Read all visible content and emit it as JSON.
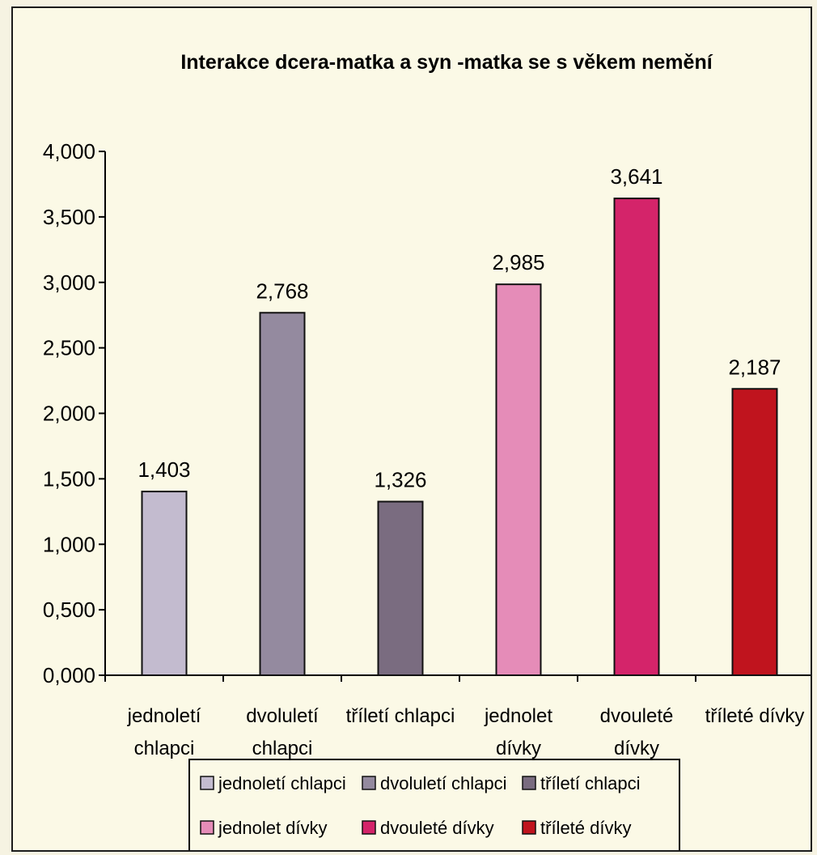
{
  "chart_data": {
    "type": "bar",
    "title": "Interakce dcera-matka a syn -matka se s věkem nemění",
    "xlabel": "",
    "ylabel": "",
    "ylim": [
      0,
      4
    ],
    "ytick_labels": [
      "0,000",
      "0,500",
      "1,000",
      "1,500",
      "2,000",
      "2,500",
      "3,000",
      "3,500",
      "4,000"
    ],
    "categories": [
      [
        "jednoletí",
        "chlapci"
      ],
      [
        "dvoluletí",
        "chlapci"
      ],
      [
        "tříletí chlapci"
      ],
      [
        "jednolet",
        "dívky"
      ],
      [
        "dvouleté",
        "dívky"
      ],
      [
        "tříleté dívky"
      ]
    ],
    "values": [
      1.403,
      2.768,
      1.326,
      2.985,
      3.641,
      2.187
    ],
    "value_labels": [
      "1,403",
      "2,768",
      "1,326",
      "2,985",
      "3,641",
      "2,187"
    ],
    "colors": [
      "#c3bbcf",
      "#948a9f",
      "#7a6c80",
      "#e58cb8",
      "#d4246a",
      "#c0141e"
    ],
    "legend_placement": "bottom",
    "legend": [
      "jednoletí chlapci",
      "dvoluletí chlapci",
      "tříletí chlapci",
      "jednolet dívky",
      "dvouleté dívky",
      "tříleté dívky"
    ],
    "grid": false
  }
}
